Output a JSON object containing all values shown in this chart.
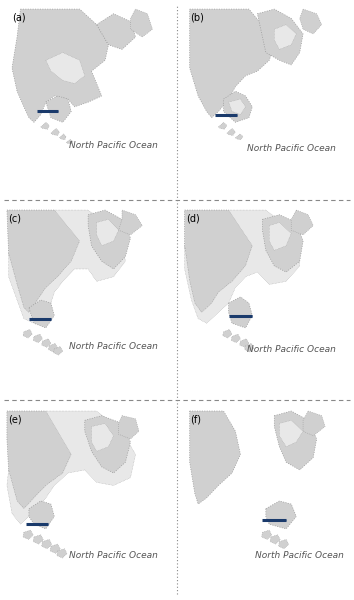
{
  "panel_labels": [
    "(a)",
    "(b)",
    "(c)",
    "(d)",
    "(e)",
    "(f)"
  ],
  "ocean_text": "North Pacific Ocean",
  "land_color": "#d0d0d0",
  "land_edge_color": "#999999",
  "inner_color": "#e8e8e8",
  "blue_color": "#1a3a6b",
  "blue_light": "#4a6aa0",
  "background_color": "#ffffff",
  "sep_color": "#888888",
  "label_fontsize": 7,
  "ocean_fontsize": 6.5,
  "figsize": [
    3.54,
    6.0
  ],
  "dpi": 100
}
